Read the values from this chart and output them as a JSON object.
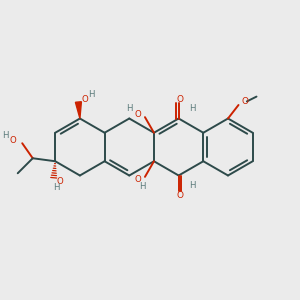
{
  "bg_color": "#ebebeb",
  "bond_color": "#2d4a4a",
  "oxygen_color": "#cc2200",
  "lw": 1.4,
  "xlim": [
    0,
    10
  ],
  "ylim": [
    0,
    10
  ],
  "figsize": [
    3.0,
    3.0
  ],
  "dpi": 100
}
